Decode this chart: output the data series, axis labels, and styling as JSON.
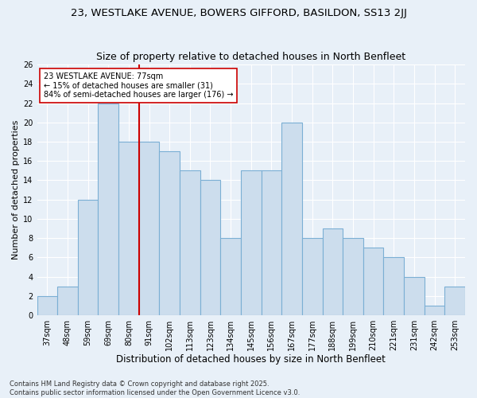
{
  "title1": "23, WESTLAKE AVENUE, BOWERS GIFFORD, BASILDON, SS13 2JJ",
  "title2": "Size of property relative to detached houses in North Benfleet",
  "xlabel": "Distribution of detached houses by size in North Benfleet",
  "ylabel": "Number of detached properties",
  "categories": [
    "37sqm",
    "48sqm",
    "59sqm",
    "69sqm",
    "80sqm",
    "91sqm",
    "102sqm",
    "113sqm",
    "123sqm",
    "134sqm",
    "145sqm",
    "156sqm",
    "167sqm",
    "177sqm",
    "188sqm",
    "199sqm",
    "210sqm",
    "221sqm",
    "231sqm",
    "242sqm",
    "253sqm"
  ],
  "values": [
    2,
    3,
    12,
    22,
    18,
    18,
    17,
    15,
    14,
    8,
    15,
    15,
    20,
    8,
    9,
    8,
    7,
    6,
    4,
    1,
    3
  ],
  "bar_color": "#ccdded",
  "bar_edge_color": "#7bafd4",
  "vline_x_index": 4,
  "vline_color": "#cc0000",
  "annotation_text": "23 WESTLAKE AVENUE: 77sqm\n← 15% of detached houses are smaller (31)\n84% of semi-detached houses are larger (176) →",
  "annotation_box_color": "#ffffff",
  "annotation_box_edge": "#cc0000",
  "ylim": [
    0,
    26
  ],
  "yticks": [
    0,
    2,
    4,
    6,
    8,
    10,
    12,
    14,
    16,
    18,
    20,
    22,
    24,
    26
  ],
  "background_color": "#e8f0f8",
  "grid_color": "#ffffff",
  "footer_text": "Contains HM Land Registry data © Crown copyright and database right 2025.\nContains public sector information licensed under the Open Government Licence v3.0.",
  "title1_fontsize": 9.5,
  "title2_fontsize": 9,
  "xlabel_fontsize": 8.5,
  "ylabel_fontsize": 8,
  "tick_fontsize": 7,
  "annotation_fontsize": 7,
  "footer_fontsize": 6
}
